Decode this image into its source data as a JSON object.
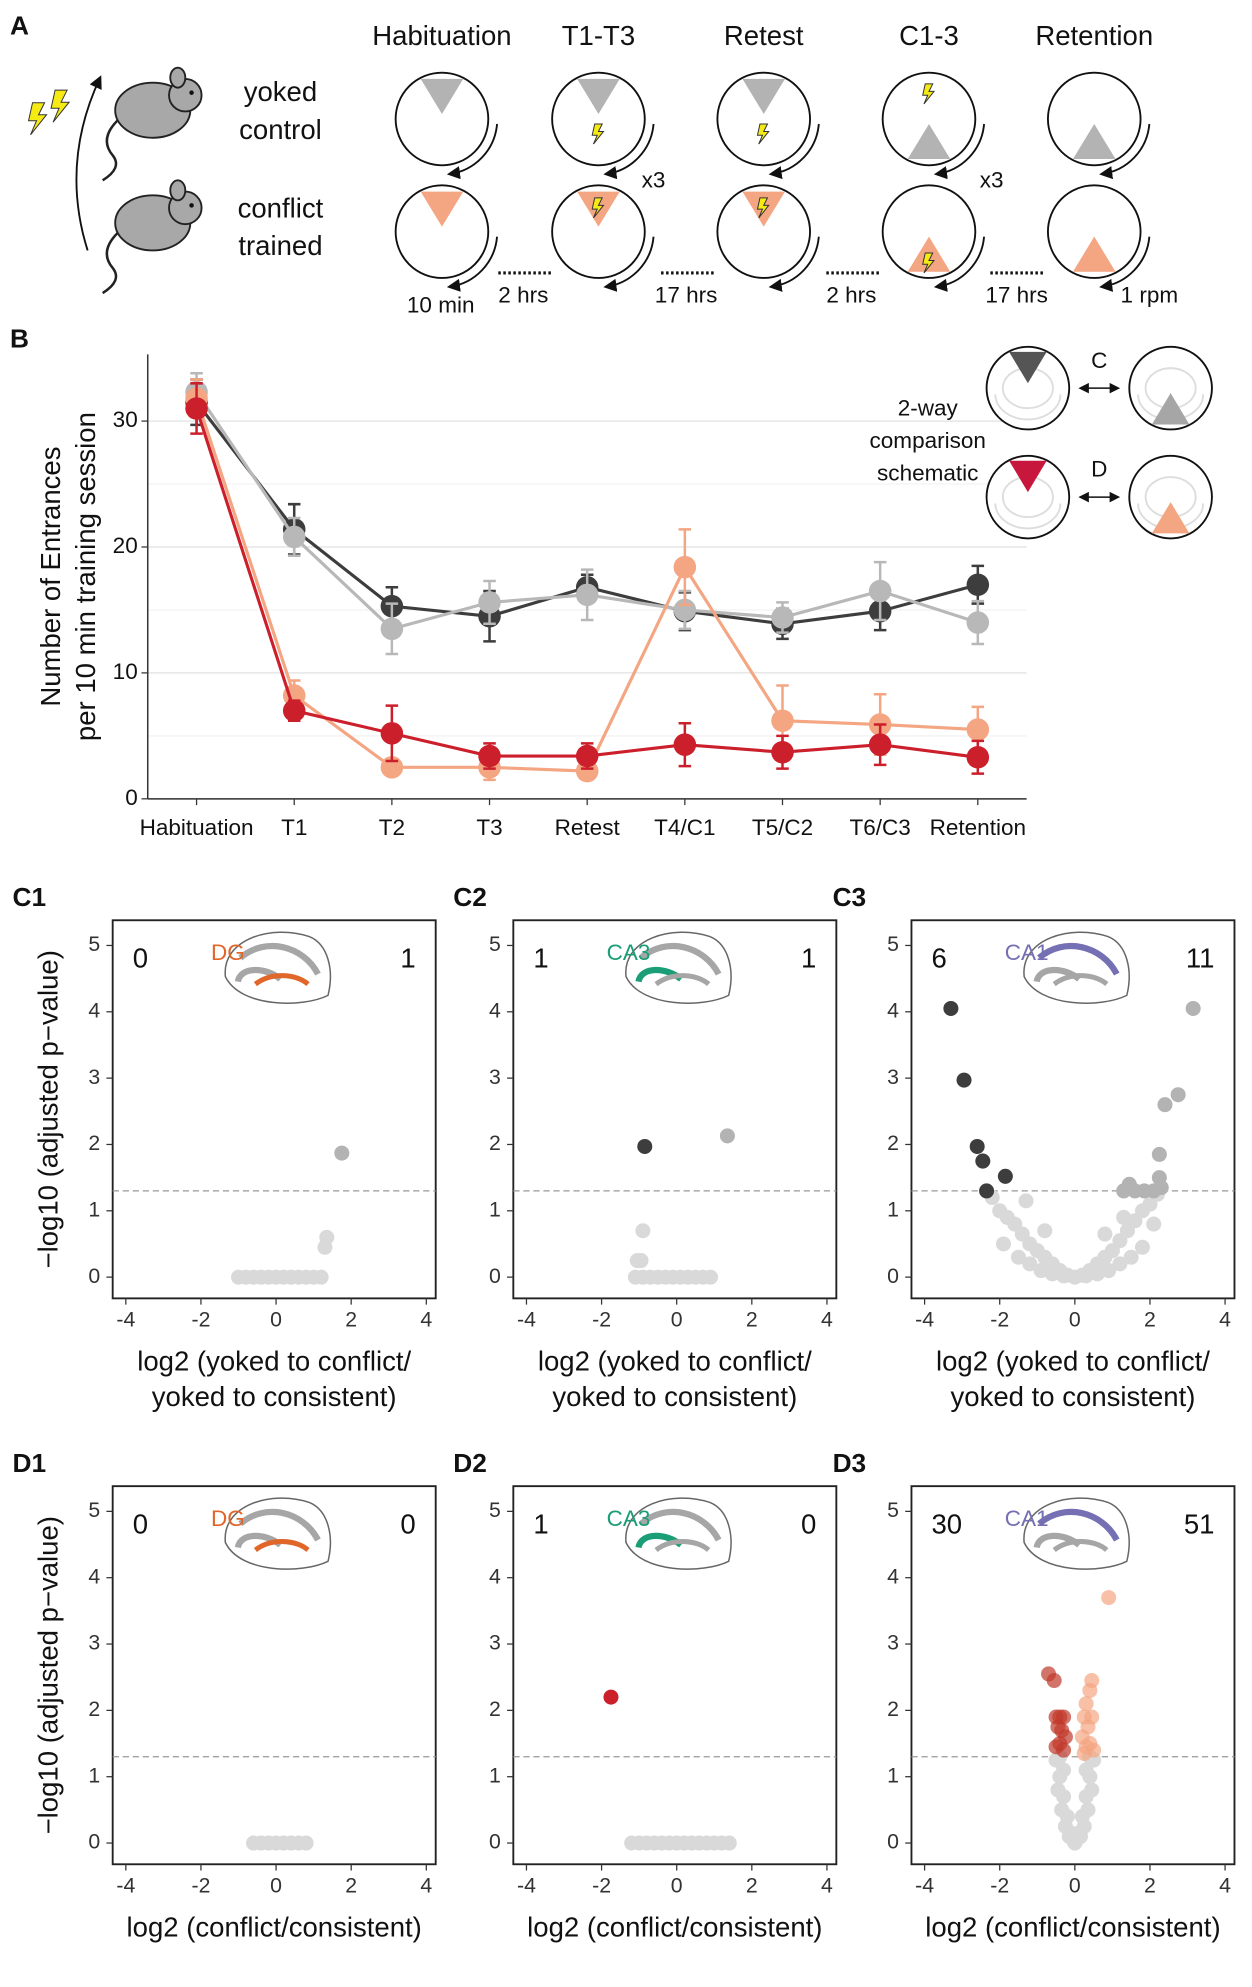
{
  "panel_a": {
    "panel": "A",
    "stages": [
      "Habituation",
      "T1-T3",
      "Retest",
      "C1-3",
      "Retention"
    ],
    "top_row": [
      "yoked",
      "control"
    ],
    "bottom_row": [
      "conflict",
      "trained"
    ],
    "repeats": [
      "x3",
      "x3"
    ],
    "durations": [
      "10 min",
      "2 hrs",
      "17 hrs",
      "2 hrs",
      "17 hrs",
      "1 rpm"
    ]
  },
  "chart_data": [
    {
      "type": "line",
      "panel": "B",
      "ylabel": [
        "Number of Entrances",
        "per 10 min training session"
      ],
      "categories": [
        "Habituation",
        "T1",
        "T2",
        "T3",
        "Retest",
        "T4/C1",
        "T5/C2",
        "T6/C3",
        "Retention"
      ],
      "ylim": [
        0,
        35.3
      ],
      "yticks": [
        0,
        10,
        20,
        30
      ],
      "yminor": [
        5,
        15,
        25
      ],
      "grid": true,
      "series": [
        {
          "color": "#3d3d3d",
          "values": [
            31.5,
            21.4,
            15.3,
            14.5,
            16.8,
            14.9,
            13.9,
            14.9,
            17.0
          ],
          "errors": [
            1.8,
            2.0,
            1.5,
            2.0,
            1.0,
            1.5,
            1.2,
            1.5,
            1.5
          ]
        },
        {
          "color": "#b8b8b8",
          "values": [
            32.3,
            20.8,
            13.5,
            15.6,
            16.2,
            15.0,
            14.4,
            16.5,
            14.0
          ],
          "errors": [
            1.5,
            1.5,
            2.0,
            1.7,
            2.0,
            1.5,
            1.2,
            2.3,
            1.7
          ]
        },
        {
          "color": "#f4a582",
          "values": [
            31.8,
            8.2,
            2.5,
            2.5,
            2.2,
            18.4,
            6.2,
            5.9,
            5.5
          ],
          "errors": [
            1.5,
            1.2,
            0.5,
            1.0,
            0.5,
            3.0,
            2.8,
            2.4,
            1.8
          ]
        },
        {
          "color": "#cc1f2c",
          "values": [
            31.0,
            7.0,
            5.2,
            3.4,
            3.4,
            4.3,
            3.7,
            4.3,
            3.3
          ],
          "errors": [
            2.0,
            0.8,
            2.2,
            1.0,
            1.0,
            1.7,
            1.3,
            1.6,
            1.3
          ]
        }
      ],
      "inset": {
        "lines": [
          "2-way",
          "comparison",
          "schematic"
        ],
        "labels": [
          "C",
          "D"
        ]
      }
    },
    {
      "type": "scatter",
      "panel": "C1",
      "region": "DG",
      "region_color": "#e0662a",
      "count_left": 0,
      "count_right": 1,
      "ylabel": "−log10 (adjusted p−value)",
      "xlabel": [
        "log2 (yoked to conflict/",
        "yoked to consistent)"
      ],
      "xlim": [
        -4.35,
        4.25
      ],
      "ylim": [
        -0.32,
        5.38
      ],
      "xticks": [
        -4,
        -2,
        0,
        2,
        4
      ],
      "yticks": [
        0,
        1,
        2,
        3,
        4,
        5
      ],
      "threshold": 1.3,
      "series": [
        {
          "color": "#d9d9d9",
          "x": [
            -1.0,
            -0.8,
            -0.6,
            -0.4,
            -0.2,
            0,
            0.2,
            0.4,
            0.6,
            0.8,
            1.0,
            1.2,
            1.3,
            1.35
          ],
          "y": [
            0,
            0,
            0,
            0,
            0,
            0,
            0,
            0,
            0,
            0,
            0,
            0,
            0.45,
            0.6
          ]
        },
        {
          "color": "#b3b3b3",
          "x": [
            1.75
          ],
          "y": [
            1.87
          ]
        }
      ]
    },
    {
      "type": "scatter",
      "panel": "C2",
      "region": "CA3",
      "region_color": "#1a9e77",
      "count_left": 1,
      "count_right": 1,
      "xlabel": [
        "log2 (yoked to conflict/",
        "yoked to consistent)"
      ],
      "xlim": [
        -4.35,
        4.25
      ],
      "ylim": [
        -0.32,
        5.38
      ],
      "xticks": [
        -4,
        -2,
        0,
        2,
        4
      ],
      "yticks": [
        0,
        1,
        2,
        3,
        4,
        5
      ],
      "threshold": 1.3,
      "series": [
        {
          "color": "#d9d9d9",
          "x": [
            -1.1,
            -0.9,
            -0.7,
            -0.5,
            -0.3,
            -0.1,
            0.1,
            0.3,
            0.5,
            0.7,
            0.9,
            -1.05,
            -0.95,
            -0.9
          ],
          "y": [
            0,
            0,
            0,
            0,
            0,
            0,
            0,
            0,
            0,
            0,
            0,
            0.25,
            0.25,
            0.7
          ]
        },
        {
          "color": "#3d3d3d",
          "x": [
            -0.85
          ],
          "y": [
            1.97
          ]
        },
        {
          "color": "#b3b3b3",
          "x": [
            1.35
          ],
          "y": [
            2.13
          ]
        }
      ]
    },
    {
      "type": "scatter",
      "panel": "C3",
      "region": "CA1",
      "region_color": "#7570b3",
      "count_left": 6,
      "count_right": 11,
      "xlabel": [
        "log2 (yoked to conflict/",
        "yoked to consistent)"
      ],
      "xlim": [
        -4.35,
        4.25
      ],
      "ylim": [
        -0.32,
        5.38
      ],
      "xticks": [
        -4,
        -2,
        0,
        2,
        4
      ],
      "yticks": [
        0,
        1,
        2,
        3,
        4,
        5
      ],
      "threshold": 1.3,
      "series": [
        {
          "color": "#d9d9d9",
          "x": [
            -2.2,
            -2.0,
            -1.8,
            -1.6,
            -1.4,
            -1.2,
            -1.0,
            -0.8,
            -0.6,
            -0.4,
            -0.2,
            0,
            0.2,
            0.4,
            0.6,
            0.8,
            1.0,
            1.2,
            1.4,
            1.6,
            1.8,
            2.0,
            2.2,
            -1.5,
            -1.2,
            -0.9,
            -0.6,
            -0.3,
            0.3,
            0.6,
            0.9,
            1.2,
            1.5,
            1.8,
            -1.3,
            -0.8,
            0.8,
            1.3,
            2.1,
            -1.9
          ],
          "y": [
            1.2,
            1.0,
            0.9,
            0.8,
            0.65,
            0.5,
            0.4,
            0.3,
            0.2,
            0.1,
            0.03,
            0,
            0.03,
            0.1,
            0.2,
            0.3,
            0.4,
            0.55,
            0.7,
            0.85,
            1.0,
            1.1,
            1.25,
            0.3,
            0.2,
            0.1,
            0.05,
            0.02,
            0.02,
            0.05,
            0.1,
            0.2,
            0.3,
            0.45,
            1.15,
            0.7,
            0.65,
            0.9,
            0.8,
            0.5
          ]
        },
        {
          "color": "#3d3d3d",
          "x": [
            -3.3,
            -2.95,
            -2.6,
            -2.45,
            -2.35,
            -1.85
          ],
          "y": [
            4.05,
            2.97,
            1.97,
            1.75,
            1.3,
            1.52
          ]
        },
        {
          "color": "#b3b3b3",
          "x": [
            3.15,
            2.75,
            2.4,
            2.25,
            2.25,
            2.3,
            1.85,
            1.3,
            1.45,
            1.6,
            2.1
          ],
          "y": [
            4.05,
            2.75,
            2.6,
            1.85,
            1.5,
            1.35,
            1.3,
            1.3,
            1.4,
            1.3,
            1.3
          ]
        }
      ]
    },
    {
      "type": "scatter",
      "panel": "D1",
      "region": "DG",
      "region_color": "#e0662a",
      "count_left": 0,
      "count_right": 0,
      "ylabel": "−log10 (adjusted p−value)",
      "xlabel": [
        "log2 (conflict/consistent)"
      ],
      "xlim": [
        -4.35,
        4.25
      ],
      "ylim": [
        -0.32,
        5.38
      ],
      "xticks": [
        -4,
        -2,
        0,
        2,
        4
      ],
      "yticks": [
        0,
        1,
        2,
        3,
        4,
        5
      ],
      "threshold": 1.3,
      "series": [
        {
          "color": "#d9d9d9",
          "x": [
            -0.6,
            -0.4,
            -0.2,
            0,
            0.2,
            0.4,
            0.6,
            0.8
          ],
          "y": [
            0,
            0,
            0,
            0,
            0,
            0,
            0,
            0
          ]
        }
      ]
    },
    {
      "type": "scatter",
      "panel": "D2",
      "region": "CA3",
      "region_color": "#1a9e77",
      "count_left": 1,
      "count_right": 0,
      "xlabel": [
        "log2 (conflict/consistent)"
      ],
      "xlim": [
        -4.35,
        4.25
      ],
      "ylim": [
        -0.32,
        5.38
      ],
      "xticks": [
        -4,
        -2,
        0,
        2,
        4
      ],
      "yticks": [
        0,
        1,
        2,
        3,
        4,
        5
      ],
      "threshold": 1.3,
      "series": [
        {
          "color": "#d9d9d9",
          "x": [
            -1.2,
            -1.0,
            -0.8,
            -0.6,
            -0.4,
            -0.2,
            0,
            0.2,
            0.4,
            0.6,
            0.8,
            1.0,
            1.2,
            1.4
          ],
          "y": [
            0,
            0,
            0,
            0,
            0,
            0,
            0,
            0,
            0,
            0,
            0,
            0,
            0,
            0
          ]
        },
        {
          "color": "#cc1f2c",
          "x": [
            -1.75
          ],
          "y": [
            2.2
          ]
        }
      ]
    },
    {
      "type": "scatter",
      "panel": "D3",
      "region": "CA1",
      "region_color": "#7570b3",
      "count_left": 30,
      "count_right": 51,
      "xlabel": [
        "log2 (conflict/consistent)"
      ],
      "xlim": [
        -4.35,
        4.25
      ],
      "ylim": [
        -0.32,
        5.38
      ],
      "xticks": [
        -4,
        -2,
        0,
        2,
        4
      ],
      "yticks": [
        0,
        1,
        2,
        3,
        4,
        5
      ],
      "threshold": 1.3,
      "series": [
        {
          "color": "#d9d9d9",
          "x": [
            -0.5,
            -0.4,
            -0.3,
            -0.2,
            -0.1,
            0,
            0.1,
            0.2,
            0.3,
            0.4,
            0.5,
            -0.45,
            -0.35,
            -0.25,
            -0.15,
            0.15,
            0.25,
            0.35,
            0.45,
            -0.05,
            0.05,
            -0.3,
            0.3,
            -0.4,
            0.4
          ],
          "y": [
            1.25,
            1.0,
            0.7,
            0.4,
            0.15,
            0,
            0.15,
            0.4,
            0.7,
            1.0,
            1.25,
            0.8,
            0.5,
            0.25,
            0.1,
            0.1,
            0.25,
            0.5,
            0.8,
            0.05,
            0.05,
            1.1,
            1.1,
            1.3,
            1.3
          ]
        },
        {
          "color": "#c0392b",
          "opacity": 0.7,
          "x": [
            -0.7,
            -0.55,
            -0.5,
            -0.4,
            -0.3,
            -0.45,
            -0.35,
            -0.25,
            -0.5,
            -0.4,
            -0.3
          ],
          "y": [
            2.55,
            2.45,
            1.9,
            1.9,
            1.9,
            1.75,
            1.7,
            1.6,
            1.45,
            1.5,
            1.4
          ]
        },
        {
          "color": "#f4a582",
          "opacity": 0.7,
          "x": [
            0.9,
            0.45,
            0.4,
            0.3,
            0.25,
            0.45,
            0.35,
            0.2,
            0.3,
            0.4,
            0.5,
            0.25
          ],
          "y": [
            3.7,
            2.45,
            2.3,
            2.1,
            1.9,
            1.9,
            1.75,
            1.6,
            1.45,
            1.5,
            1.4,
            1.35
          ]
        }
      ]
    }
  ]
}
